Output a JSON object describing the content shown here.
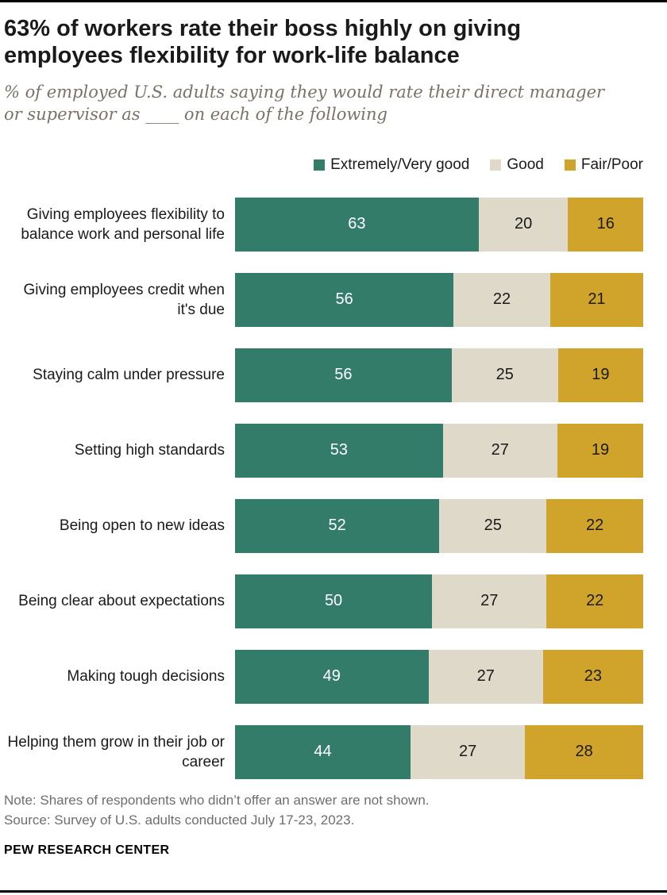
{
  "page": {
    "title": "63% of workers rate their boss highly on giving employees flexibility for work-life balance",
    "subtitle": "% of employed U.S. adults saying they would rate their direct manager or supervisor as ____ on each of the following",
    "note": "Note: Shares of respondents who didn’t offer an answer are not shown.",
    "source": "Source: Survey of U.S. adults conducted July 17-23, 2023.",
    "branding": "PEW RESEARCH CENTER"
  },
  "chart_data": {
    "type": "bar",
    "orientation": "horizontal-stacked",
    "xlim": [
      0,
      100
    ],
    "grid": false,
    "legend_position": "top-right",
    "legend": [
      {
        "key": "extremely-very-good",
        "label": "Extremely/Very good",
        "color": "#337c6a",
        "value_text_color": "#ffffff"
      },
      {
        "key": "good",
        "label": "Good",
        "color": "#ded9c8",
        "value_text_color": "#1a1a1a"
      },
      {
        "key": "fair-poor",
        "label": "Fair/Poor",
        "color": "#d0a42b",
        "value_text_color": "#1a1a1a"
      }
    ],
    "categories": [
      "Giving employees flexibility to balance work and personal life",
      "Giving employees credit when it's due",
      "Staying calm under pressure",
      "Setting high standards",
      "Being open to new ideas",
      "Being clear about expectations",
      "Making tough decisions",
      "Helping them grow in their job or career"
    ],
    "series": [
      {
        "name": "Extremely/Very good",
        "values": [
          63,
          56,
          56,
          53,
          52,
          50,
          49,
          44
        ]
      },
      {
        "name": "Good",
        "values": [
          20,
          22,
          25,
          27,
          25,
          27,
          27,
          27
        ]
      },
      {
        "name": "Fair/Poor",
        "values": [
          16,
          21,
          19,
          19,
          22,
          22,
          23,
          28
        ]
      }
    ]
  }
}
